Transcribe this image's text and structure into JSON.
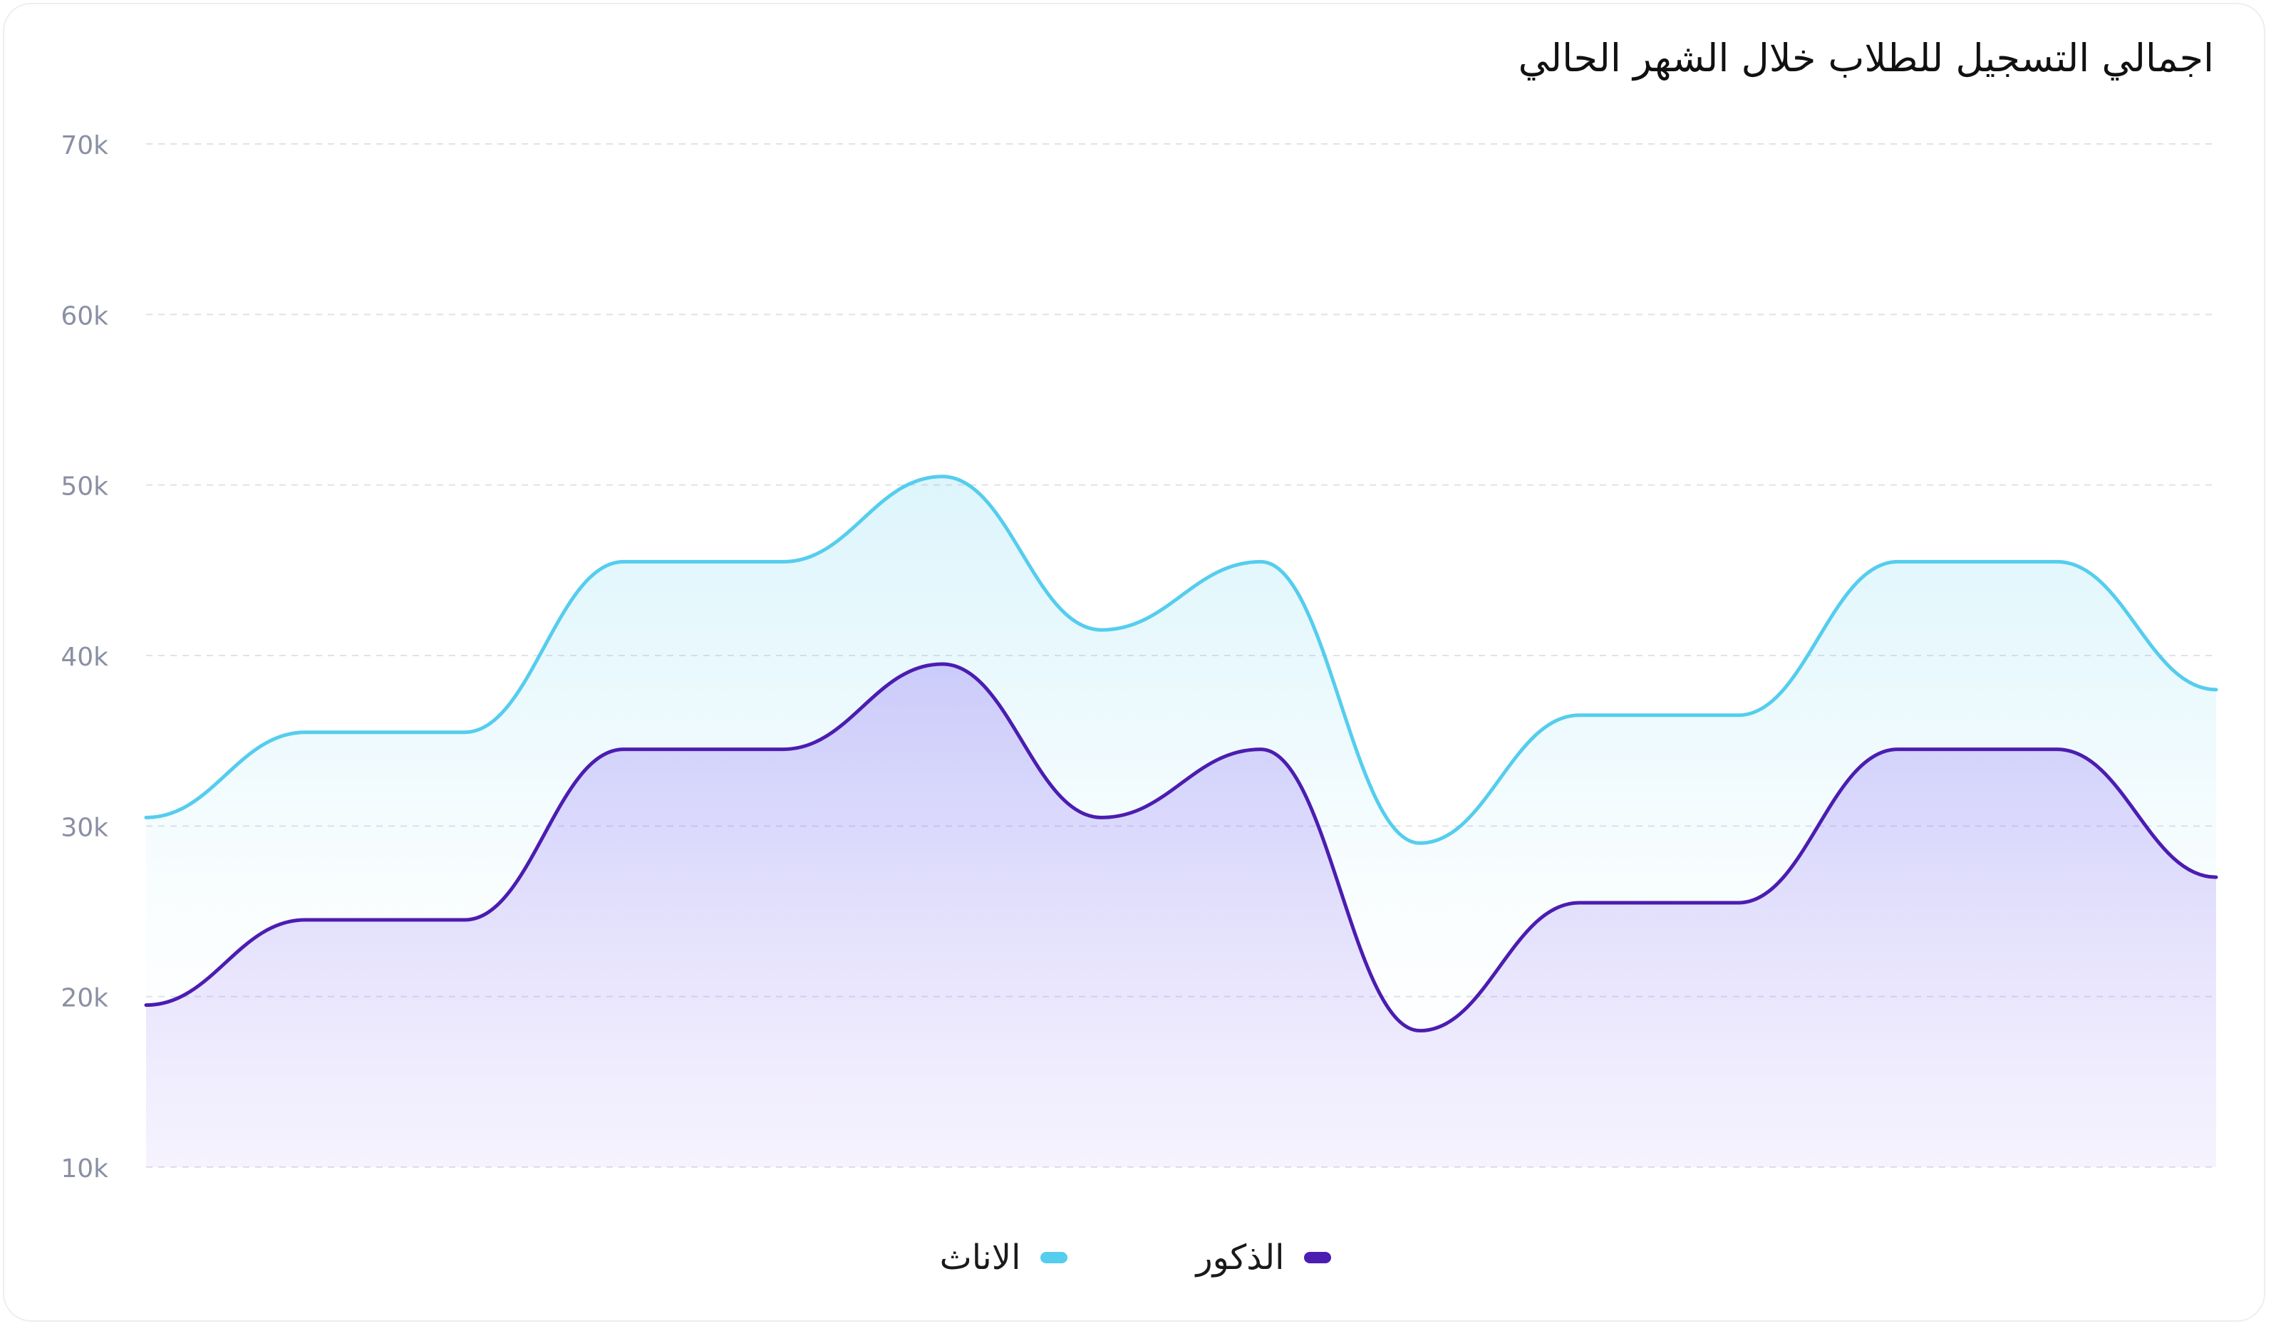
{
  "chart_data": {
    "type": "area",
    "title": "اجمالي التسجيل للطلاب خلال الشهر الحالي",
    "xlabel": "",
    "ylabel": "",
    "ylim": [
      10000,
      70000
    ],
    "yticks": [
      10000,
      20000,
      30000,
      40000,
      50000,
      60000,
      70000
    ],
    "ytick_labels": [
      "10k",
      "20k",
      "30k",
      "40k",
      "50k",
      "60k",
      "70k"
    ],
    "grid": true,
    "legend_position": "bottom",
    "x": [
      0,
      1,
      2,
      3,
      4,
      5,
      6,
      7,
      8,
      9,
      10,
      11,
      12,
      13
    ],
    "series": [
      {
        "name": "الاناث",
        "color": "#55CDEE",
        "values": [
          30500,
          35500,
          35500,
          45500,
          45500,
          50500,
          41500,
          45500,
          29000,
          36500,
          36500,
          45500,
          45500,
          38000
        ]
      },
      {
        "name": "الذكور",
        "color": "#4B1DB0",
        "values": [
          19500,
          24500,
          24500,
          34500,
          34500,
          39500,
          30500,
          34500,
          18000,
          25500,
          25500,
          34500,
          34500,
          27000
        ]
      }
    ]
  }
}
